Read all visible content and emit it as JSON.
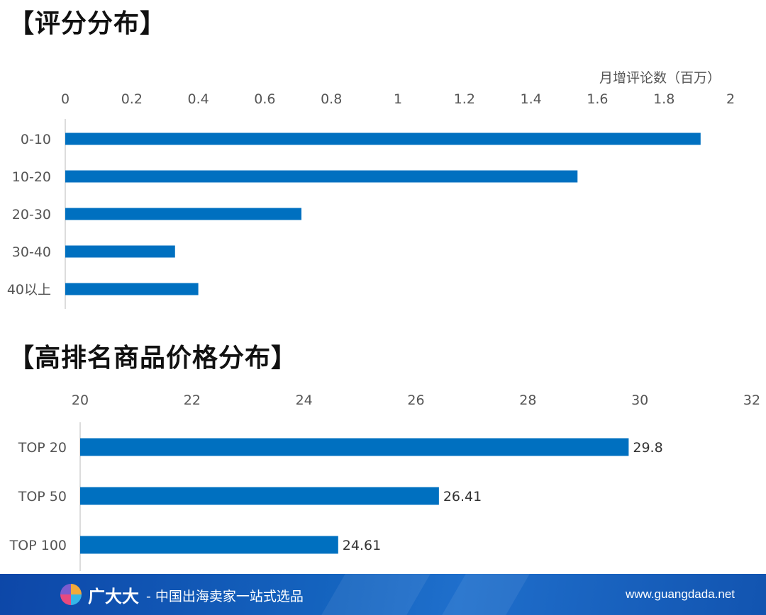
{
  "sections": {
    "rating_title": "【评分分布】",
    "price_title": "【高排名商品价格分布】"
  },
  "footer": {
    "brand": "广大大",
    "slogan": "- 中国出海卖家一站式选品",
    "url": "www.guangdada.net"
  },
  "colors": {
    "bar": "#0070c0",
    "footer": "#1565c0"
  },
  "chart_data": [
    {
      "type": "bar",
      "orientation": "horizontal",
      "title": "【评分分布】",
      "xlabel": "月增评论数（百万）",
      "categories": [
        "0-10",
        "10-20",
        "20-30",
        "30-40",
        "40以上"
      ],
      "values": [
        1.91,
        1.54,
        0.71,
        0.33,
        0.4
      ],
      "xlim": [
        0,
        2
      ],
      "ticks": [
        "0",
        "0.2",
        "0.4",
        "0.6",
        "0.8",
        "1",
        "1.2",
        "1.4",
        "1.6",
        "1.8",
        "2"
      ],
      "axis_position": "top",
      "grid": false
    },
    {
      "type": "bar",
      "orientation": "horizontal",
      "title": "【高排名商品价格分布】",
      "categories": [
        "TOP 20",
        "TOP 50",
        "TOP 100"
      ],
      "values": [
        29.8,
        26.41,
        24.61
      ],
      "data_labels": [
        "29.8",
        "26.41",
        "24.61"
      ],
      "xlim": [
        20,
        32
      ],
      "ticks": [
        "20",
        "22",
        "24",
        "26",
        "28",
        "30",
        "32"
      ],
      "axis_position": "top",
      "grid": false
    }
  ]
}
